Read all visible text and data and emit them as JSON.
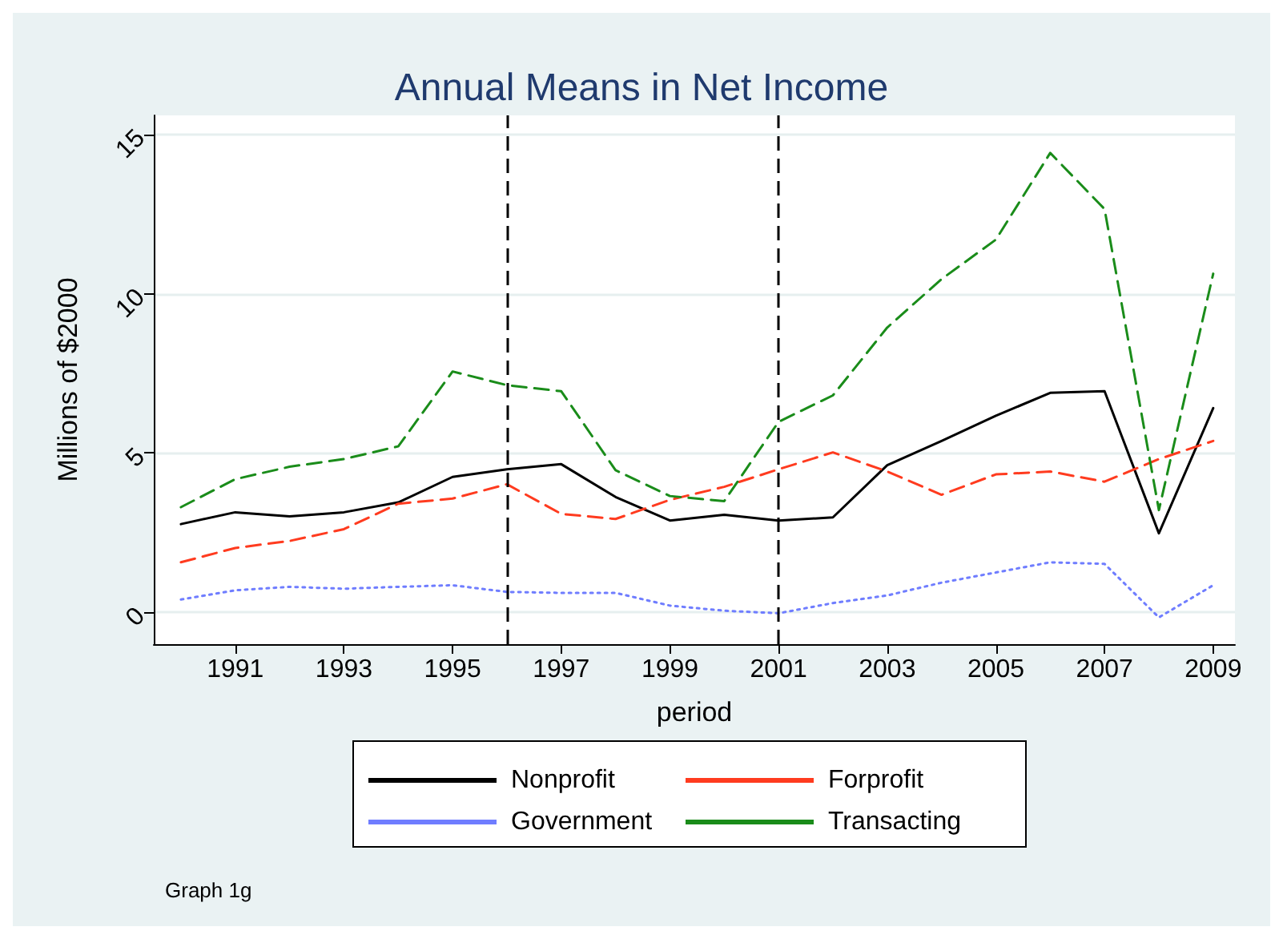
{
  "chart_data": {
    "type": "line",
    "title": "Annual Means in Net Income",
    "xlabel": "period",
    "ylabel": "Millions of $2000",
    "x": [
      1990,
      1991,
      1992,
      1993,
      1994,
      1995,
      1996,
      1997,
      1998,
      1999,
      2000,
      2001,
      2002,
      2003,
      2004,
      2005,
      2006,
      2007,
      2008,
      2009
    ],
    "series": [
      {
        "name": "Nonprofit",
        "color": "#000000",
        "line_style": "solid",
        "values": [
          2.77,
          3.14,
          3.01,
          3.14,
          3.45,
          4.25,
          4.49,
          4.65,
          3.62,
          2.88,
          3.06,
          2.88,
          2.98,
          4.62,
          5.38,
          6.17,
          6.89,
          6.94,
          2.48,
          6.41
        ]
      },
      {
        "name": "Forprofit",
        "color": "#ff3b1f",
        "line_style": "dashed",
        "values": [
          1.57,
          2.02,
          2.24,
          2.61,
          3.41,
          3.57,
          4.02,
          3.09,
          2.93,
          3.53,
          3.94,
          4.49,
          5.02,
          4.42,
          3.69,
          4.33,
          4.42,
          4.1,
          4.81,
          5.38
        ]
      },
      {
        "name": "Government",
        "color": "#6f7dff",
        "line_style": "dotted",
        "values": [
          0.4,
          0.69,
          0.8,
          0.74,
          0.8,
          0.85,
          0.64,
          0.61,
          0.61,
          0.21,
          0.05,
          -0.03,
          0.29,
          0.53,
          0.93,
          1.25,
          1.57,
          1.52,
          -0.16,
          0.85
        ]
      },
      {
        "name": "Transacting",
        "color": "#1a8c1a",
        "line_style": "dashed",
        "values": [
          3.3,
          4.18,
          4.57,
          4.81,
          5.21,
          7.56,
          7.13,
          6.94,
          4.46,
          3.65,
          3.49,
          5.98,
          6.81,
          8.94,
          10.46,
          11.7,
          14.42,
          12.66,
          3.21,
          10.63
        ]
      }
    ],
    "xlim": [
      1989.5,
      2009.4
    ],
    "xticks": [
      1991,
      1993,
      1995,
      1997,
      1999,
      2001,
      2003,
      2005,
      2007,
      2009
    ],
    "ylim": [
      -1,
      15.6
    ],
    "yticks": [
      0,
      5,
      10,
      15
    ],
    "ref_lines": [
      {
        "axis": "x",
        "value": 1996,
        "color": "#000000",
        "line_style": "dashed"
      },
      {
        "axis": "x",
        "value": 2001,
        "color": "#000000",
        "line_style": "dashed"
      }
    ],
    "annotations": [
      "Graph 1g"
    ],
    "grid": "y",
    "legend": "bottom",
    "marker": "none"
  }
}
